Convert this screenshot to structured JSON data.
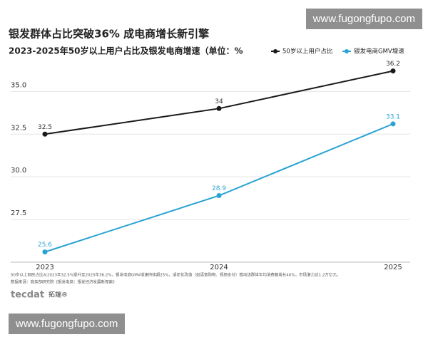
{
  "chart_data": {
    "type": "line",
    "title": "银发群体占比突破36%  成电商增长新引擎",
    "subtitle": "2023-2025年50岁以上用户占比及银发电商增速（单位：%",
    "categories": [
      "2023",
      "2024",
      "2025"
    ],
    "series": [
      {
        "name": "50岁以上用户占比",
        "color": "#1a1a1a",
        "values": [
          32.5,
          34,
          36.2
        ]
      },
      {
        "name": "银发电商GMV增速",
        "color": "#2aa3d4",
        "values": [
          25.6,
          28.9,
          33.1
        ]
      }
    ],
    "ylim": [
      25.0,
      36.6
    ],
    "yticks": [
      {
        "value": 27.5,
        "label": "27.5"
      },
      {
        "value": 30,
        "label": "30.0"
      },
      {
        "value": 32.5,
        "label": "32.5"
      },
      {
        "value": 35,
        "label": "35.0"
      }
    ],
    "grid": true,
    "legend": "top-right"
  },
  "footer": {
    "note": "50岁以上网民占比从2023年32.5%提升至2025年36.2%，银发电商GMV增速持续超25%，适老化改造（如语音购物、视频支付）推动该群体年均消费额增长40%，市场潜力达1.2万亿元。",
    "source": "数据来源：商务部研究院《银发电商：银发经济发展新探索》",
    "logo": "tecdat",
    "brand": "拓端®"
  },
  "watermarks": [
    "www.fugongfupo.com",
    "www.fugongfupo.com"
  ]
}
